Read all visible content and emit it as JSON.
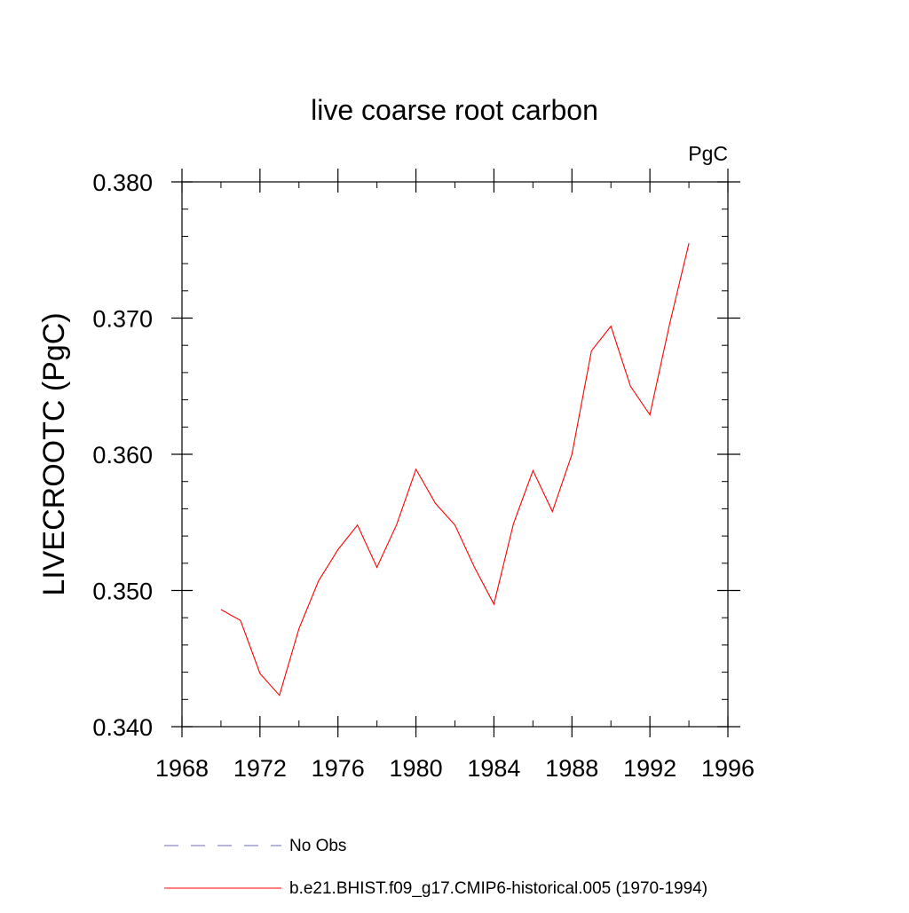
{
  "chart_data": {
    "type": "line",
    "title": "live coarse root carbon",
    "units_label": "PgC",
    "ylabel": "LIVECROOTC  (PgC)",
    "xlabel": "",
    "xlim": [
      1968,
      1996
    ],
    "ylim": [
      0.34,
      0.38
    ],
    "x_ticks": [
      1968,
      1972,
      1976,
      1980,
      1984,
      1988,
      1992,
      1996
    ],
    "x_tick_labels": [
      "1968",
      "1972",
      "1976",
      "1980",
      "1984",
      "1988",
      "1992",
      "1996"
    ],
    "y_ticks": [
      0.34,
      0.35,
      0.36,
      0.37,
      0.38
    ],
    "y_tick_labels": [
      "0.340",
      "0.350",
      "0.360",
      "0.370",
      "0.380"
    ],
    "grid": false,
    "legend_position": "bottom",
    "series": [
      {
        "name": "No Obs",
        "color": "#6a6ab8",
        "style": "dashed",
        "x": [],
        "values": []
      },
      {
        "name": "b.e21.BHIST.f09_g17.CMIP6-historical.005 (1970-1994)",
        "color": "#ff0000",
        "style": "solid",
        "x": [
          1970,
          1971,
          1972,
          1973,
          1974,
          1975,
          1976,
          1977,
          1978,
          1979,
          1980,
          1981,
          1982,
          1983,
          1984,
          1985,
          1986,
          1987,
          1988,
          1989,
          1990,
          1991,
          1992,
          1993,
          1994
        ],
        "values": [
          0.3486,
          0.3478,
          0.3439,
          0.3423,
          0.3472,
          0.3507,
          0.353,
          0.3548,
          0.3517,
          0.3548,
          0.3589,
          0.3564,
          0.3548,
          0.3517,
          0.349,
          0.3549,
          0.3588,
          0.3558,
          0.36,
          0.3676,
          0.3694,
          0.365,
          0.3629,
          0.3695,
          0.3755
        ]
      }
    ]
  }
}
